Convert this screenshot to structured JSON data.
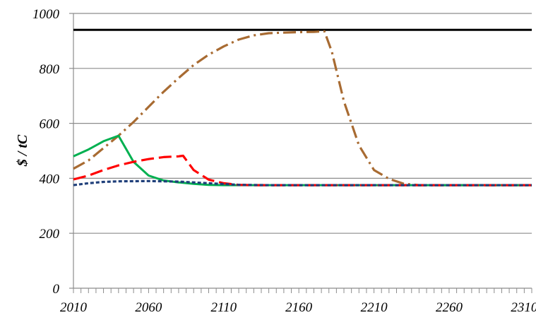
{
  "chart_data": {
    "type": "line",
    "title": "",
    "xlabel": "",
    "ylabel": "$ / tC",
    "xlim": [
      2010,
      2315
    ],
    "ylim": [
      0,
      1000
    ],
    "x_ticks": [
      2010,
      2060,
      2110,
      2160,
      2210,
      2260,
      2310
    ],
    "x_minor_step": 5,
    "y_ticks": [
      0,
      200,
      400,
      600,
      800,
      1000
    ],
    "grid": "horizontal",
    "legend": "none",
    "series": [
      {
        "color": "#000000",
        "style": "solid",
        "points": [
          [
            2010,
            940
          ],
          [
            2315,
            940
          ]
        ]
      },
      {
        "color": "#a86b32",
        "style": "dash-dot",
        "points": [
          [
            2010,
            435
          ],
          [
            2020,
            465
          ],
          [
            2030,
            510
          ],
          [
            2040,
            555
          ],
          [
            2050,
            605
          ],
          [
            2060,
            660
          ],
          [
            2070,
            715
          ],
          [
            2080,
            765
          ],
          [
            2090,
            812
          ],
          [
            2100,
            850
          ],
          [
            2110,
            880
          ],
          [
            2120,
            905
          ],
          [
            2130,
            920
          ],
          [
            2140,
            928
          ],
          [
            2150,
            930
          ],
          [
            2160,
            932
          ],
          [
            2170,
            933
          ],
          [
            2177,
            935
          ],
          [
            2182,
            860
          ],
          [
            2190,
            680
          ],
          [
            2200,
            520
          ],
          [
            2210,
            430
          ],
          [
            2220,
            398
          ],
          [
            2230,
            380
          ],
          [
            2240,
            375
          ],
          [
            2315,
            375
          ]
        ]
      },
      {
        "color": "#00b050",
        "style": "solid",
        "points": [
          [
            2010,
            480
          ],
          [
            2020,
            505
          ],
          [
            2030,
            535
          ],
          [
            2040,
            555
          ],
          [
            2050,
            460
          ],
          [
            2060,
            410
          ],
          [
            2070,
            392
          ],
          [
            2080,
            385
          ],
          [
            2090,
            380
          ],
          [
            2100,
            376
          ],
          [
            2110,
            375
          ],
          [
            2315,
            375
          ]
        ]
      },
      {
        "color": "#ff0000",
        "style": "dash",
        "points": [
          [
            2010,
            396
          ],
          [
            2020,
            410
          ],
          [
            2030,
            430
          ],
          [
            2040,
            447
          ],
          [
            2050,
            460
          ],
          [
            2060,
            470
          ],
          [
            2070,
            477
          ],
          [
            2080,
            480
          ],
          [
            2083,
            482
          ],
          [
            2090,
            430
          ],
          [
            2100,
            395
          ],
          [
            2110,
            382
          ],
          [
            2120,
            376
          ],
          [
            2130,
            375
          ],
          [
            2315,
            375
          ]
        ]
      },
      {
        "color": "#1f3f7a",
        "style": "dot",
        "points": [
          [
            2010,
            375
          ],
          [
            2020,
            382
          ],
          [
            2030,
            387
          ],
          [
            2040,
            389
          ],
          [
            2060,
            390
          ],
          [
            2080,
            388
          ],
          [
            2100,
            382
          ],
          [
            2120,
            376
          ],
          [
            2140,
            375
          ],
          [
            2315,
            375
          ]
        ]
      }
    ]
  }
}
